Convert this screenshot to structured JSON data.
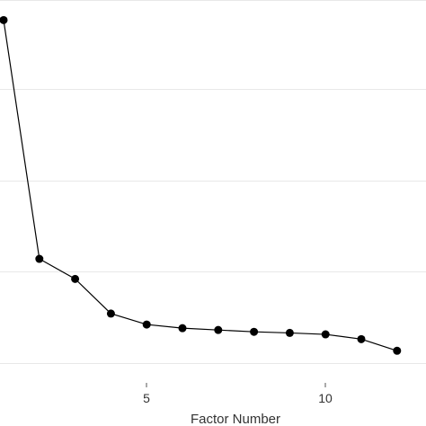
{
  "chart_data": {
    "type": "line",
    "title": "",
    "xlabel": "Factor Number",
    "ylabel": "",
    "x": [
      1,
      2,
      3,
      4,
      5,
      6,
      7,
      8,
      9,
      10,
      11,
      12
    ],
    "series": [
      {
        "values": [
          9.4,
          2.85,
          2.3,
          1.35,
          1.05,
          0.95,
          0.9,
          0.85,
          0.82,
          0.78,
          0.65,
          0.33
        ]
      }
    ],
    "x_ticks": [
      "5",
      "10"
    ],
    "xlim": [
      1,
      12.5
    ],
    "ylim": [
      -0.55,
      9.95
    ],
    "grid": true,
    "colors": {
      "line": "#000000",
      "grid": "#e8e8e8"
    }
  }
}
